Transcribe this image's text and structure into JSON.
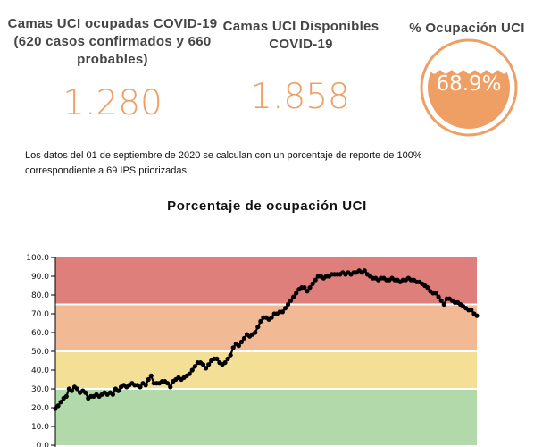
{
  "kpis": {
    "occupied": {
      "title": "Camas UCI ocupadas COVID-19 (620 casos confirmados y 660 probables)",
      "value": "1.280"
    },
    "available": {
      "title": "Camas UCI Disponibles COVID-19",
      "value": "1.858"
    },
    "occupancy": {
      "title": "% Ocupación UCI",
      "value": "68.9%",
      "fraction": 0.689
    }
  },
  "note": "Los datos del 01 de septiembre de 2020 se calculan con un porcentaje de reporte de 100% correspondiente a 69 IPS  priorizadas.",
  "colors": {
    "accent": "#ef9f64",
    "band_red": "#df7f7b",
    "band_orange": "#f2b995",
    "band_yellow": "#f4df97",
    "band_green": "#b2d9a9",
    "line": "#000000"
  },
  "chart_data": {
    "type": "line",
    "title": "Porcentaje de ocupación UCI",
    "xlabel": "",
    "ylabel": "",
    "ylim": [
      0,
      100
    ],
    "yticks": [
      "0.0",
      "10.0",
      "20.0",
      "30.0",
      "40.0",
      "50.0",
      "60.0",
      "70.0",
      "80.0",
      "90.0",
      "100.0"
    ],
    "bands": [
      {
        "from": 0,
        "to": 30,
        "color": "#b2d9a9"
      },
      {
        "from": 30,
        "to": 50,
        "color": "#f4df97"
      },
      {
        "from": 50,
        "to": 75,
        "color": "#f2b995"
      },
      {
        "from": 75,
        "to": 100,
        "color": "#df7f7b"
      }
    ],
    "series": [
      {
        "values": [
          19.5,
          21,
          23,
          25,
          26,
          30,
          29,
          31,
          30,
          28,
          29,
          28,
          25,
          26,
          26,
          27,
          26,
          27,
          28,
          27,
          28,
          27,
          30,
          29,
          31,
          32,
          31,
          32,
          33,
          32,
          32,
          31,
          33,
          32,
          35,
          37,
          33,
          33,
          33,
          34,
          34,
          33,
          31,
          34,
          35,
          36,
          35,
          36,
          37,
          38,
          40,
          42,
          44,
          44,
          43,
          41,
          43,
          45,
          46,
          46,
          44,
          43,
          44,
          46,
          48,
          52,
          54,
          53,
          55,
          57,
          59,
          58,
          59,
          60,
          63,
          66,
          68,
          68,
          67,
          68,
          70,
          70,
          71,
          71,
          73,
          75,
          77,
          79,
          81,
          83,
          84,
          84,
          82,
          84,
          86,
          88,
          90,
          90,
          89,
          90,
          90,
          91,
          91,
          91,
          91,
          92,
          91,
          92,
          91,
          92,
          92,
          93,
          92,
          93,
          91,
          90,
          89,
          89,
          88,
          89,
          89,
          88,
          88,
          89,
          88,
          88,
          87,
          88,
          88,
          89,
          88,
          88,
          87,
          87,
          86,
          85,
          84,
          82,
          81,
          81,
          79,
          77,
          75,
          78,
          78,
          77,
          76,
          76,
          75,
          74,
          73,
          72,
          72,
          70,
          69
        ]
      }
    ]
  }
}
